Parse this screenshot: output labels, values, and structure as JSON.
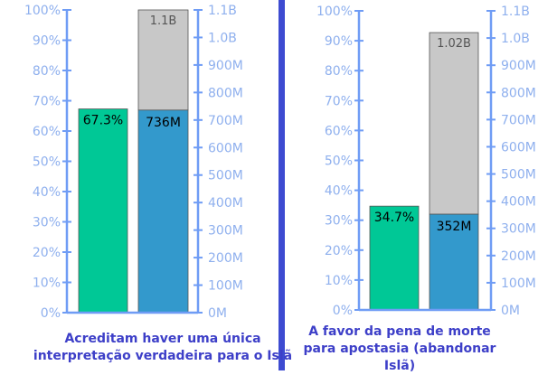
{
  "colors": {
    "axis": "#6f9cf5",
    "tick_label": "#8fb0ee",
    "percent_bar": "#00c896",
    "count_bar": "#3399cc",
    "total_bar": "#c8c8c8",
    "divider": "#3d4bd1",
    "caption": "#3d3fc8"
  },
  "chart_data": [
    {
      "type": "bar",
      "title": "Acreditam haver uma única interpretação verdadeira para o Islã",
      "left_axis": {
        "ylim": [
          0,
          100
        ],
        "ticks": [
          "0%",
          "10%",
          "20%",
          "30%",
          "40%",
          "50%",
          "60%",
          "70%",
          "80%",
          "90%",
          "100%"
        ]
      },
      "right_axis": {
        "ylim": [
          0,
          1100
        ],
        "unit": "M",
        "ticks": [
          "0M",
          "100M",
          "200M",
          "300M",
          "400M",
          "500M",
          "600M",
          "700M",
          "800M",
          "900M",
          "1.0B",
          "1.1B"
        ]
      },
      "percent_bar": {
        "value": 67.3,
        "label": "67.3%"
      },
      "count_bar": {
        "value": 736,
        "label": "736M"
      },
      "total_bar": {
        "value": 1100,
        "label": "1.1B"
      }
    },
    {
      "type": "bar",
      "title": "A favor da pena de morte para apostasia (abandonar Islã)",
      "left_axis": {
        "ylim": [
          0,
          100
        ],
        "ticks": [
          "0%",
          "10%",
          "20%",
          "30%",
          "40%",
          "50%",
          "60%",
          "70%",
          "80%",
          "90%",
          "100%"
        ]
      },
      "right_axis": {
        "ylim": [
          0,
          1100
        ],
        "unit": "M",
        "ticks": [
          "0M",
          "100M",
          "200M",
          "300M",
          "400M",
          "500M",
          "600M",
          "700M",
          "800M",
          "900M",
          "1.0B",
          "1.1B"
        ]
      },
      "percent_bar": {
        "value": 34.7,
        "label": "34.7%"
      },
      "count_bar": {
        "value": 352,
        "label": "352M"
      },
      "total_bar": {
        "value": 1020,
        "label": "1.02B"
      }
    }
  ]
}
